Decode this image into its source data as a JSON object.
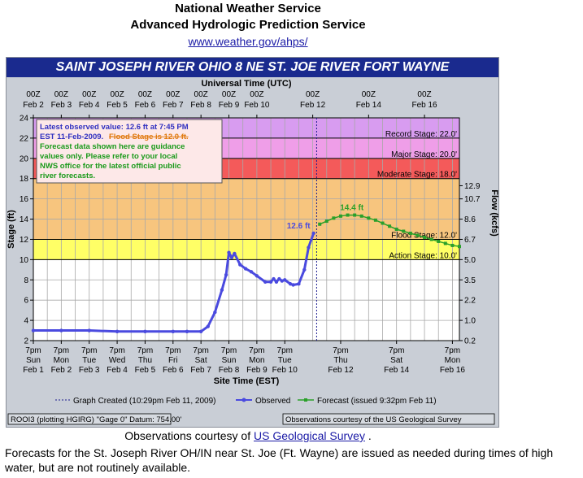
{
  "header": {
    "line1": "National Weather Service",
    "line2": "Advanced Hydrologic Prediction Service",
    "link": "www.weather.gov/ahps/"
  },
  "chart_title": "SAINT JOSEPH RIVER OHIO 8 NE ST. JOE RIVER FORT WAYNE",
  "colors": {
    "title_bar": "#1a2a8e",
    "observed": "#4a4adf",
    "forecast": "#2aa02a",
    "record_band": "#d89cf0",
    "major_band": "#ef9ee8",
    "moderate_band": "#f45a5a",
    "flood_band": "#f7c57e",
    "action_band": "#ffff66",
    "below_action_band": "#ffffff"
  },
  "info_box": {
    "line1": "Latest observed value: 12.6 ft at 7:45 PM",
    "line2a": "EST 11-Feb-2009.",
    "line2b": "Flood Stage is 12.0 ft.",
    "line3": "Forecast data shown here are guidance",
    "line4": "values only. Please refer to your local",
    "line5": "NWS office for the latest official public",
    "line6": "river forecasts."
  },
  "footer_panel": {
    "legend_created": "Graph Created (10:29pm Feb 11, 2009)",
    "legend_observed": "Observed",
    "legend_forecast": "Forecast (issued 9:32pm Feb 11)",
    "bottom_left": "ROOI3 (plotting HGIRG)  \"Gage 0\" Datum: 754.00'",
    "bottom_right": "Observations courtesy of the  US Geological Survey"
  },
  "courtesy_text": "Observations courtesy of",
  "courtesy_link": "US Geological Survey",
  "forecast_note": "Forecasts for the St. Joseph River OH/IN near St. Joe (Ft. Wayne) are issued as needed during times of high water, but are not routinely available.",
  "chart_data": {
    "type": "line",
    "xlabel": "Site Time (EST)",
    "top_axis_label": "Universal Time (UTC)",
    "ylabel": "Stage (ft)",
    "y2label": "Flow (kcfs)",
    "ylim": [
      2,
      24
    ],
    "y_ticks": [
      2,
      4,
      6,
      8,
      10,
      12,
      14,
      16,
      18,
      20,
      22,
      24
    ],
    "xlim_days": [
      0,
      15.25
    ],
    "top_ticks": [
      {
        "day": 0,
        "l1": "00Z",
        "l2": "Feb 2"
      },
      {
        "day": 1,
        "l1": "00Z",
        "l2": "Feb 3"
      },
      {
        "day": 2,
        "l1": "00Z",
        "l2": "Feb 4"
      },
      {
        "day": 3,
        "l1": "00Z",
        "l2": "Feb 5"
      },
      {
        "day": 4,
        "l1": "00Z",
        "l2": "Feb 6"
      },
      {
        "day": 5,
        "l1": "00Z",
        "l2": "Feb 7"
      },
      {
        "day": 6,
        "l1": "00Z",
        "l2": "Feb 8"
      },
      {
        "day": 7,
        "l1": "00Z",
        "l2": "Feb 9"
      },
      {
        "day": 8,
        "l1": "00Z",
        "l2": "Feb 10"
      },
      {
        "day": 10,
        "l1": "00Z",
        "l2": "Feb 12"
      },
      {
        "day": 12,
        "l1": "00Z",
        "l2": "Feb 14"
      },
      {
        "day": 14,
        "l1": "00Z",
        "l2": "Feb 16"
      }
    ],
    "bottom_ticks": [
      {
        "day": 0,
        "l1": "7pm",
        "l2": "Sun",
        "l3": "Feb 1"
      },
      {
        "day": 1,
        "l1": "7pm",
        "l2": "Mon",
        "l3": "Feb 2"
      },
      {
        "day": 2,
        "l1": "7pm",
        "l2": "Tue",
        "l3": "Feb 3"
      },
      {
        "day": 3,
        "l1": "7pm",
        "l2": "Wed",
        "l3": "Feb 4"
      },
      {
        "day": 4,
        "l1": "7pm",
        "l2": "Thu",
        "l3": "Feb 5"
      },
      {
        "day": 5,
        "l1": "7pm",
        "l2": "Fri",
        "l3": "Feb 6"
      },
      {
        "day": 6,
        "l1": "7pm",
        "l2": "Sat",
        "l3": "Feb 7"
      },
      {
        "day": 7,
        "l1": "7pm",
        "l2": "Sun",
        "l3": "Feb 8"
      },
      {
        "day": 8,
        "l1": "7pm",
        "l2": "Mon",
        "l3": "Feb 9"
      },
      {
        "day": 9,
        "l1": "7pm",
        "l2": "Tue",
        "l3": "Feb 10"
      },
      {
        "day": 11,
        "l1": "7pm",
        "l2": "Thu",
        "l3": "Feb 12"
      },
      {
        "day": 13,
        "l1": "7pm",
        "l2": "Sat",
        "l3": "Feb 14"
      },
      {
        "day": 15,
        "l1": "7pm",
        "l2": "Mon",
        "l3": "Feb 16"
      }
    ],
    "flow_ticks": [
      {
        "stage": 17.3,
        "label": "12.9"
      },
      {
        "stage": 16.0,
        "label": "10.7"
      },
      {
        "stage": 14.0,
        "label": "8.6"
      },
      {
        "stage": 12.0,
        "label": "6.7"
      },
      {
        "stage": 10.0,
        "label": "5.0"
      },
      {
        "stage": 8.0,
        "label": "3.5"
      },
      {
        "stage": 6.0,
        "label": "2.2"
      },
      {
        "stage": 4.0,
        "label": "1.0"
      },
      {
        "stage": 2.0,
        "label": "0.2"
      }
    ],
    "thresholds": [
      {
        "name": "Record Stage: 22.0'",
        "value": 22.0
      },
      {
        "name": "Major Stage: 20.0'",
        "value": 20.0
      },
      {
        "name": "Moderate Stage: 18.0'",
        "value": 18.0
      },
      {
        "name": "Flood Stage: 12.0'",
        "value": 12.0
      },
      {
        "name": "Action Stage: 10.0'",
        "value": 10.0
      }
    ],
    "graph_created_day": 10.14,
    "series": [
      {
        "name": "Observed",
        "x": [
          0.0,
          1.0,
          2.0,
          3.0,
          4.0,
          5.0,
          5.5,
          6.0,
          6.25,
          6.5,
          6.75,
          6.9,
          7.0,
          7.1,
          7.2,
          7.4,
          7.6,
          7.8,
          8.0,
          8.3,
          8.5,
          8.6,
          8.7,
          8.8,
          8.9,
          9.0,
          9.2,
          9.3,
          9.5,
          9.7,
          9.85,
          10.03
        ],
        "y": [
          3.0,
          3.0,
          3.0,
          2.9,
          2.9,
          2.9,
          2.9,
          2.9,
          3.4,
          4.8,
          7.0,
          8.5,
          10.7,
          10.2,
          10.6,
          9.5,
          9.1,
          8.8,
          8.4,
          7.8,
          7.8,
          8.1,
          7.8,
          8.1,
          7.9,
          8.0,
          7.6,
          7.5,
          7.6,
          9.0,
          11.2,
          12.6
        ]
      },
      {
        "name": "Forecast",
        "x": [
          10.25,
          10.5,
          10.75,
          11.0,
          11.25,
          11.5,
          11.75,
          12.0,
          12.25,
          12.5,
          12.75,
          13.0,
          13.25,
          13.5,
          13.75,
          14.0,
          14.25,
          14.5,
          14.75,
          15.0,
          15.25
        ],
        "y": [
          13.5,
          13.8,
          14.1,
          14.3,
          14.4,
          14.4,
          14.3,
          14.1,
          13.9,
          13.6,
          13.3,
          13.0,
          12.8,
          12.6,
          12.4,
          12.2,
          12.0,
          11.8,
          11.6,
          11.4,
          11.3
        ]
      }
    ],
    "annotations": [
      {
        "text": "12.6 ft",
        "day": 10.03,
        "value": 12.6
      },
      {
        "text": "14.4 ft",
        "day": 11.4,
        "value": 14.4
      }
    ]
  }
}
